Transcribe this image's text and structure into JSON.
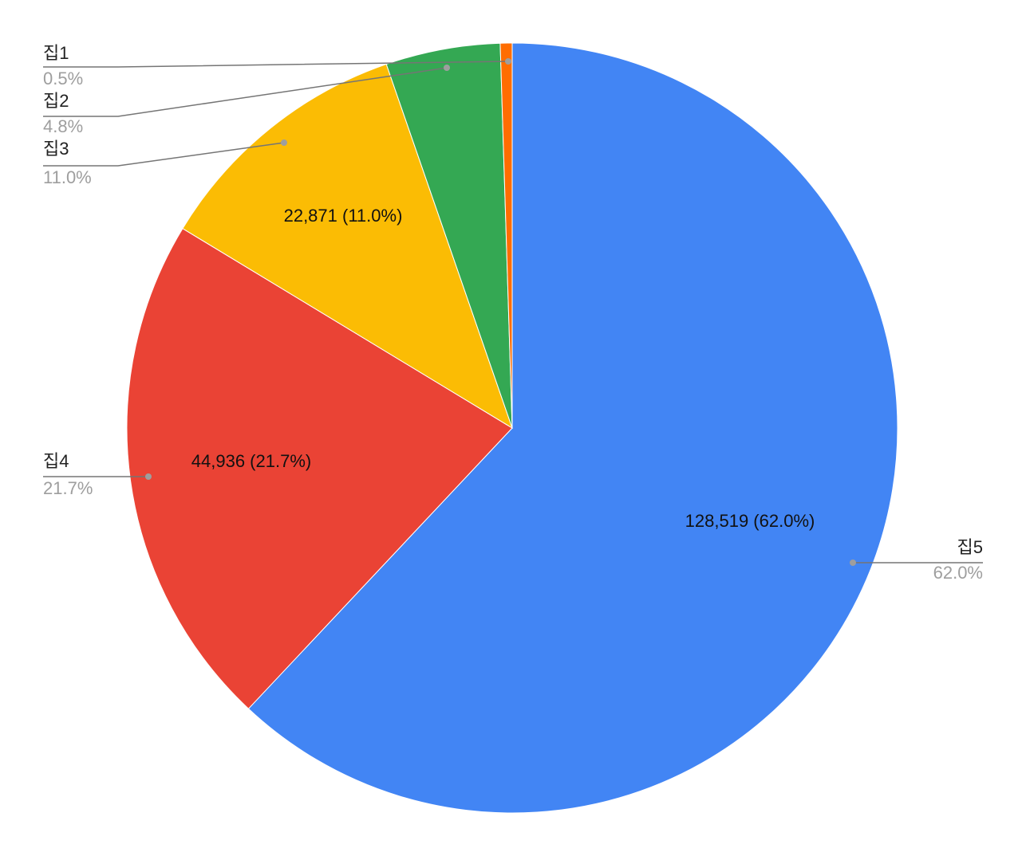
{
  "chart_data": {
    "type": "pie",
    "categories": [
      "집5",
      "집4",
      "집3",
      "집2",
      "집1"
    ],
    "values": [
      128519,
      44936,
      22871,
      9950,
      1030
    ],
    "value_labels": [
      "128,519 (62.0%)",
      "44,936 (21.7%)",
      "22,871 (11.0%)",
      null,
      null
    ],
    "percent_labels": [
      "62.0%",
      "21.7%",
      "11.0%",
      "4.8%",
      "0.5%"
    ],
    "colors": [
      "#4285f4",
      "#ea4335",
      "#fbbc04",
      "#34a853",
      "#ff6d01"
    ]
  }
}
